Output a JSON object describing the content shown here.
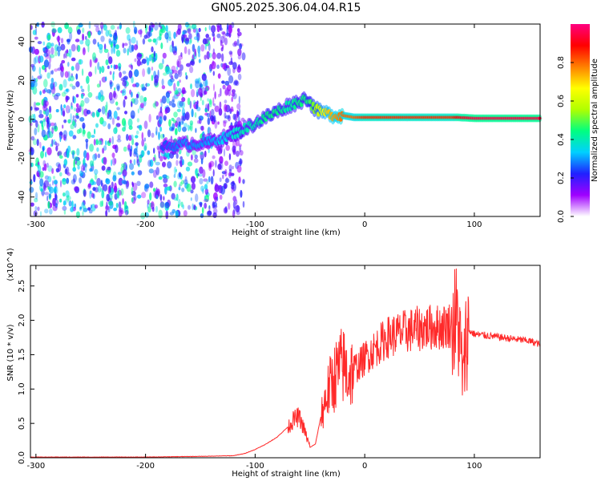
{
  "title": "GN05.2025.306.04.04.R15",
  "chart_data": [
    {
      "type": "heatmap",
      "xlabel": "Height of straight line (km)",
      "ylabel": "Frequency (Hz)",
      "xlim": [
        -305,
        160
      ],
      "ylim": [
        -50,
        49
      ],
      "xticks": [
        -300,
        -200,
        -100,
        0,
        100
      ],
      "yticks": [
        -40,
        -20,
        0,
        20,
        40
      ],
      "colorbar": {
        "label": "Normalized spectral amplitude",
        "range": [
          0,
          1
        ],
        "ticks": [
          "0.0",
          "0.2",
          "0.4",
          "0.6",
          "0.8"
        ],
        "colors": [
          "#ffffff",
          "#a000ff",
          "#2020ff",
          "#00d0ff",
          "#00ff80",
          "#b0ff00",
          "#ffff00",
          "#ff8000",
          "#ff0000",
          "#ff0080"
        ]
      },
      "noise_region_x": [
        -305,
        -125
      ],
      "ridge": {
        "x": [
          -185,
          -165,
          -145,
          -125,
          -110,
          -100,
          -90,
          -80,
          -70,
          -60,
          -52,
          -48,
          -42,
          -35,
          -28,
          -20,
          -10,
          0,
          20,
          40,
          60,
          80,
          85,
          100,
          130,
          160
        ],
        "freq": [
          -14,
          -13,
          -12,
          -9,
          -5,
          -2,
          1,
          4,
          7,
          9,
          11,
          7,
          4,
          3,
          2,
          2,
          1,
          1,
          1,
          1,
          1,
          1,
          1,
          0.5,
          0.5,
          0.5
        ],
        "amplitude": [
          0.25,
          0.3,
          0.3,
          0.35,
          0.4,
          0.4,
          0.45,
          0.45,
          0.4,
          0.45,
          0.45,
          0.5,
          0.6,
          0.7,
          0.75,
          0.8,
          0.8,
          0.85,
          0.85,
          0.85,
          0.85,
          0.85,
          0.9,
          0.95,
          0.95,
          0.95
        ]
      }
    },
    {
      "type": "line",
      "xlabel": "Height of straight line (km)",
      "ylabel": "SNR (10 * v/v)",
      "yscale_note": "(x10^4)",
      "xlim": [
        -305,
        160
      ],
      "ylim": [
        0,
        2.8
      ],
      "xticks": [
        -300,
        -200,
        -100,
        0,
        100
      ],
      "yticks": [
        "0.0",
        "0.5",
        "1.0",
        "1.5",
        "2.0",
        "2.5"
      ],
      "color": "#ff2a2a",
      "series": [
        {
          "x": [
            -305,
            -250,
            -200,
            -150,
            -120,
            -110,
            -100,
            -90,
            -80,
            -70,
            -65,
            -60,
            -55,
            -50,
            -45,
            -40,
            -35,
            -30,
            -25,
            -20,
            -15,
            -10,
            -5,
            0,
            10,
            20,
            30,
            40,
            50,
            60,
            70,
            80,
            85,
            88,
            90,
            92,
            95,
            100,
            110,
            120,
            130,
            140,
            150,
            160
          ],
          "y": [
            0.01,
            0.01,
            0.01,
            0.02,
            0.03,
            0.06,
            0.12,
            0.2,
            0.3,
            0.45,
            0.55,
            0.6,
            0.4,
            0.15,
            0.2,
            0.6,
            0.9,
            1.1,
            1.25,
            1.35,
            1.2,
            1.3,
            1.35,
            1.45,
            1.6,
            1.75,
            1.8,
            1.85,
            1.88,
            1.9,
            1.9,
            1.95,
            2.0,
            1.5,
            1.1,
            1.7,
            1.85,
            1.8,
            1.78,
            1.76,
            1.74,
            1.72,
            1.7,
            1.65
          ]
        }
      ]
    }
  ]
}
